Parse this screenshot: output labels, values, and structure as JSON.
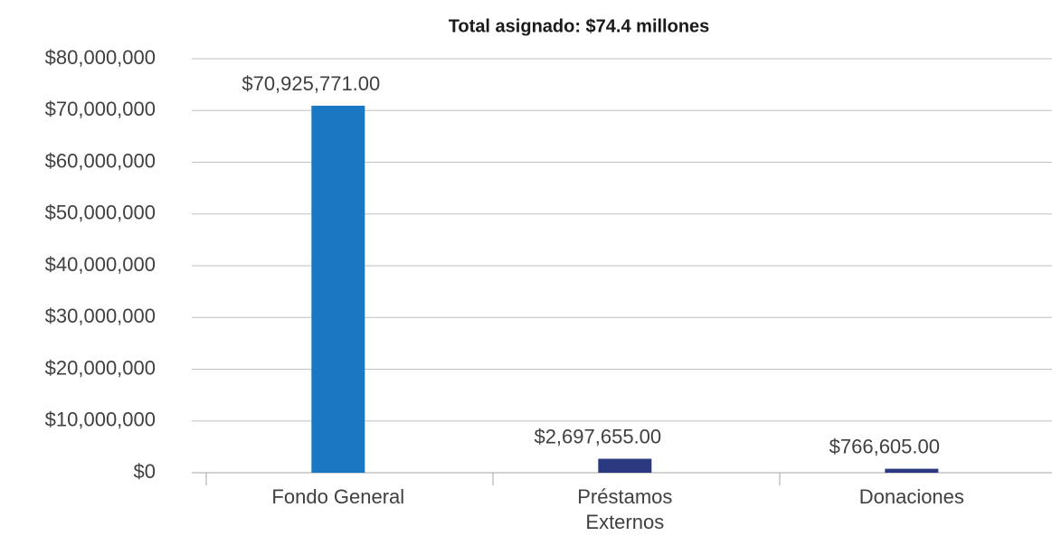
{
  "chart_data": {
    "type": "bar",
    "title": "Total asignado: $74.4 millones",
    "categories": [
      "Fondo General",
      "Préstamos Externos",
      "Donaciones"
    ],
    "values": [
      70925771,
      2697655,
      766605
    ],
    "value_labels": [
      "$70,925,771.00",
      "$2,697,655.00",
      "$766,605.00"
    ],
    "colors": [
      "#1a78c2",
      "#2b3a80",
      "#2b3a80"
    ],
    "ylim": [
      0,
      80000000
    ],
    "yticks": [
      {
        "value": 0,
        "label": "$0"
      },
      {
        "value": 10000000,
        "label": "$10,000,000"
      },
      {
        "value": 20000000,
        "label": "$20,000,000"
      },
      {
        "value": 30000000,
        "label": "$30,000,000"
      },
      {
        "value": 40000000,
        "label": "$40,000,000"
      },
      {
        "value": 50000000,
        "label": "$50,000,000"
      },
      {
        "value": 60000000,
        "label": "$60,000,000"
      },
      {
        "value": 70000000,
        "label": "$70,000,000"
      },
      {
        "value": 80000000,
        "label": "$80,000,000"
      }
    ],
    "grid": true
  }
}
